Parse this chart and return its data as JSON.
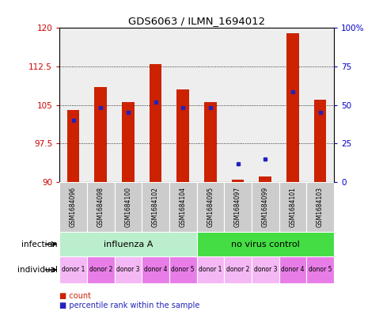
{
  "title": "GDS6063 / ILMN_1694012",
  "samples": [
    "GSM1684096",
    "GSM1684098",
    "GSM1684100",
    "GSM1684102",
    "GSM1684104",
    "GSM1684095",
    "GSM1684097",
    "GSM1684099",
    "GSM1684101",
    "GSM1684103"
  ],
  "red_values": [
    104.0,
    108.5,
    105.5,
    113.0,
    108.0,
    105.5,
    90.5,
    91.0,
    119.0,
    106.0
  ],
  "blue_values": [
    102.0,
    104.5,
    103.5,
    105.5,
    104.5,
    104.5,
    93.5,
    94.5,
    107.5,
    103.5
  ],
  "ymin": 90,
  "ymax": 120,
  "yticks_left": [
    90,
    97.5,
    105,
    112.5,
    120
  ],
  "yticks_right_vals": [
    0,
    25,
    50,
    75,
    100
  ],
  "yticks_right_labels": [
    "0",
    "25",
    "50",
    "75",
    "100%"
  ],
  "infection_label1": "influenza A",
  "infection_label2": "no virus control",
  "infection_color1": "#bbeecc",
  "infection_color2": "#44dd44",
  "individual_labels": [
    "donor 1",
    "donor 2",
    "donor 3",
    "donor 4",
    "donor 5",
    "donor 1",
    "donor 2",
    "donor 3",
    "donor 4",
    "donor 5"
  ],
  "individual_colors": [
    "#f4b8f4",
    "#e87de8",
    "#f4b8f4",
    "#e87de8",
    "#e87de8",
    "#f4b8f4",
    "#f4b8f4",
    "#f4b8f4",
    "#e87de8",
    "#e87de8"
  ],
  "sample_bg": "#cccccc",
  "bar_color": "#cc2200",
  "dot_color": "#2222bb",
  "background_color": "#ffffff",
  "label_color_left": "#cc0000",
  "label_color_right": "#0000cc",
  "bar_width": 0.45
}
